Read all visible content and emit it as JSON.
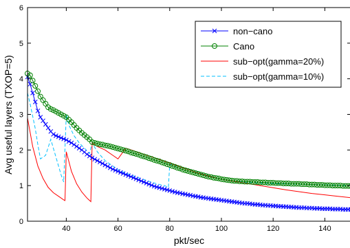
{
  "chart_data": {
    "type": "line",
    "xlabel": "pkt/sec",
    "ylabel": "Avg useful layers (TXOP=5)",
    "xlim": [
      25,
      150
    ],
    "ylim": [
      0,
      6
    ],
    "xticks": [
      40,
      60,
      80,
      100,
      120,
      140
    ],
    "yticks": [
      0,
      1,
      2,
      3,
      4,
      5,
      6
    ],
    "grid": false,
    "legend_position": "top-right",
    "series": [
      {
        "name": "non−cano",
        "color": "#0000ff",
        "marker": "x",
        "line_style": "solid",
        "x": [
          25,
          26,
          27,
          28,
          29,
          30,
          31,
          32,
          33,
          34,
          35,
          36,
          37,
          38,
          39,
          40,
          41,
          42,
          43,
          44,
          45,
          46,
          47,
          48,
          49,
          50,
          51,
          52,
          53,
          54,
          55,
          56,
          57,
          58,
          59,
          60,
          61,
          62,
          63,
          64,
          65,
          66,
          67,
          68,
          69,
          70,
          71,
          72,
          73,
          74,
          75,
          76,
          77,
          78,
          79,
          80,
          81,
          82,
          83,
          84,
          85,
          86,
          87,
          88,
          89,
          90,
          91,
          92,
          93,
          94,
          95,
          96,
          97,
          98,
          99,
          100,
          101,
          102,
          103,
          104,
          105,
          106,
          107,
          108,
          109,
          110,
          111,
          112,
          113,
          114,
          115,
          116,
          117,
          118,
          119,
          120,
          121,
          122,
          123,
          124,
          125,
          126,
          127,
          128,
          129,
          130,
          131,
          132,
          133,
          134,
          135,
          136,
          137,
          138,
          139,
          140,
          141,
          142,
          143,
          144,
          145,
          146,
          147,
          148,
          149,
          150
        ],
        "y": [
          4.05,
          3.85,
          3.6,
          3.35,
          3.1,
          2.92,
          2.82,
          2.72,
          2.62,
          2.52,
          2.44,
          2.4,
          2.37,
          2.34,
          2.31,
          2.28,
          2.24,
          2.2,
          2.15,
          2.1,
          2.05,
          2.0,
          1.94,
          1.88,
          1.83,
          1.78,
          1.74,
          1.7,
          1.66,
          1.62,
          1.58,
          1.54,
          1.5,
          1.46,
          1.43,
          1.4,
          1.37,
          1.34,
          1.31,
          1.28,
          1.25,
          1.22,
          1.19,
          1.16,
          1.13,
          1.1,
          1.07,
          1.04,
          1.01,
          0.98,
          0.96,
          0.94,
          0.92,
          0.9,
          0.88,
          0.86,
          0.84,
          0.82,
          0.8,
          0.79,
          0.77,
          0.76,
          0.74,
          0.73,
          0.71,
          0.7,
          0.69,
          0.67,
          0.66,
          0.65,
          0.64,
          0.63,
          0.62,
          0.61,
          0.6,
          0.59,
          0.58,
          0.57,
          0.56,
          0.55,
          0.54,
          0.53,
          0.52,
          0.51,
          0.5,
          0.5,
          0.49,
          0.48,
          0.47,
          0.47,
          0.46,
          0.45,
          0.45,
          0.44,
          0.44,
          0.43,
          0.43,
          0.42,
          0.42,
          0.41,
          0.41,
          0.4,
          0.4,
          0.39,
          0.39,
          0.38,
          0.38,
          0.38,
          0.37,
          0.37,
          0.37,
          0.36,
          0.36,
          0.36,
          0.35,
          0.35,
          0.35,
          0.35,
          0.34,
          0.34,
          0.34,
          0.34,
          0.33,
          0.33,
          0.33,
          0.33
        ]
      },
      {
        "name": "Cano",
        "color": "#008000",
        "marker": "o",
        "line_style": "solid",
        "x": [
          25,
          26,
          27,
          28,
          29,
          30,
          31,
          32,
          33,
          34,
          35,
          36,
          37,
          38,
          39,
          40,
          41,
          42,
          43,
          44,
          45,
          46,
          47,
          48,
          49,
          50,
          51,
          52,
          53,
          54,
          55,
          56,
          57,
          58,
          59,
          60,
          61,
          62,
          63,
          64,
          65,
          66,
          67,
          68,
          69,
          70,
          71,
          72,
          73,
          74,
          75,
          76,
          77,
          78,
          79,
          80,
          81,
          82,
          83,
          84,
          85,
          86,
          87,
          88,
          89,
          90,
          91,
          92,
          93,
          94,
          95,
          96,
          97,
          98,
          99,
          100,
          101,
          102,
          103,
          104,
          105,
          106,
          107,
          108,
          109,
          110,
          111,
          112,
          113,
          114,
          115,
          116,
          117,
          118,
          119,
          120,
          121,
          122,
          123,
          124,
          125,
          126,
          127,
          128,
          129,
          130,
          131,
          132,
          133,
          134,
          135,
          136,
          137,
          138,
          139,
          140,
          141,
          142,
          143,
          144,
          145,
          146,
          147,
          148,
          149,
          150
        ],
        "y": [
          4.15,
          4.1,
          3.95,
          3.8,
          3.65,
          3.5,
          3.4,
          3.3,
          3.2,
          3.15,
          3.12,
          3.08,
          3.04,
          3.0,
          2.96,
          2.92,
          2.85,
          2.78,
          2.7,
          2.62,
          2.55,
          2.48,
          2.42,
          2.36,
          2.3,
          2.22,
          2.2,
          2.18,
          2.16,
          2.15,
          2.13,
          2.12,
          2.1,
          2.08,
          2.06,
          2.04,
          2.02,
          2.0,
          1.98,
          1.96,
          1.93,
          1.91,
          1.89,
          1.87,
          1.84,
          1.82,
          1.8,
          1.77,
          1.75,
          1.72,
          1.7,
          1.68,
          1.65,
          1.63,
          1.6,
          1.58,
          1.55,
          1.53,
          1.5,
          1.48,
          1.45,
          1.43,
          1.41,
          1.39,
          1.37,
          1.35,
          1.33,
          1.31,
          1.29,
          1.27,
          1.25,
          1.24,
          1.22,
          1.21,
          1.2,
          1.18,
          1.17,
          1.16,
          1.15,
          1.14,
          1.13,
          1.13,
          1.12,
          1.12,
          1.11,
          1.11,
          1.11,
          1.1,
          1.1,
          1.1,
          1.09,
          1.09,
          1.09,
          1.08,
          1.08,
          1.08,
          1.07,
          1.07,
          1.07,
          1.06,
          1.06,
          1.06,
          1.05,
          1.05,
          1.05,
          1.05,
          1.04,
          1.04,
          1.04,
          1.03,
          1.03,
          1.03,
          1.02,
          1.02,
          1.02,
          1.01,
          1.01,
          1.01,
          1.0,
          1.0,
          1.0,
          1.0,
          0.99,
          0.99,
          0.99,
          0.99
        ]
      },
      {
        "name": "sub−opt(gamma=20%)",
        "color": "#ff0000",
        "marker": "none",
        "line_style": "solid",
        "x": [
          25,
          27,
          29,
          31,
          33,
          35,
          37,
          39,
          39.5,
          40,
          42,
          44,
          46,
          48,
          49.5,
          50,
          52,
          55,
          58,
          60,
          63,
          66,
          70,
          75,
          80,
          85,
          90,
          95,
          100,
          104,
          105,
          110,
          115,
          120,
          125,
          130,
          135,
          140,
          145,
          150
        ],
        "y": [
          2.9,
          2.1,
          1.55,
          1.2,
          0.95,
          0.8,
          0.7,
          0.6,
          0.58,
          1.95,
          1.4,
          1.05,
          0.82,
          0.65,
          0.55,
          2.2,
          2.1,
          2.0,
          1.85,
          1.75,
          2.05,
          1.98,
          1.88,
          1.76,
          1.63,
          1.5,
          1.38,
          1.27,
          1.18,
          1.13,
          1.12,
          1.06,
          1.0,
          0.94,
          0.88,
          0.83,
          0.78,
          0.74,
          0.7,
          0.66
        ]
      },
      {
        "name": "sub−opt(gamma=10%)",
        "color": "#00bfff",
        "marker": "none",
        "line_style": "dashed",
        "x": [
          25,
          26,
          27,
          28,
          29,
          30,
          32,
          34,
          36,
          38,
          39,
          40,
          41,
          43,
          45,
          47,
          49,
          50,
          52,
          55,
          58,
          60,
          62,
          65,
          68,
          70,
          72,
          75,
          78,
          79.5,
          80,
          85,
          90,
          95,
          100,
          105,
          110,
          115,
          120,
          125,
          130,
          135,
          140,
          145,
          150
        ],
        "y": [
          3.6,
          3.3,
          2.95,
          2.6,
          2.15,
          1.75,
          1.85,
          2.3,
          1.8,
          1.3,
          1.1,
          3.0,
          2.7,
          2.4,
          2.2,
          2.05,
          1.9,
          2.2,
          1.95,
          1.7,
          1.55,
          1.45,
          1.38,
          1.3,
          1.22,
          1.17,
          1.12,
          1.05,
          1.0,
          0.95,
          1.6,
          1.5,
          1.39,
          1.28,
          1.18,
          1.12,
          1.09,
          1.07,
          1.06,
          1.05,
          1.04,
          1.03,
          1.02,
          1.01,
          1.0
        ]
      }
    ]
  }
}
